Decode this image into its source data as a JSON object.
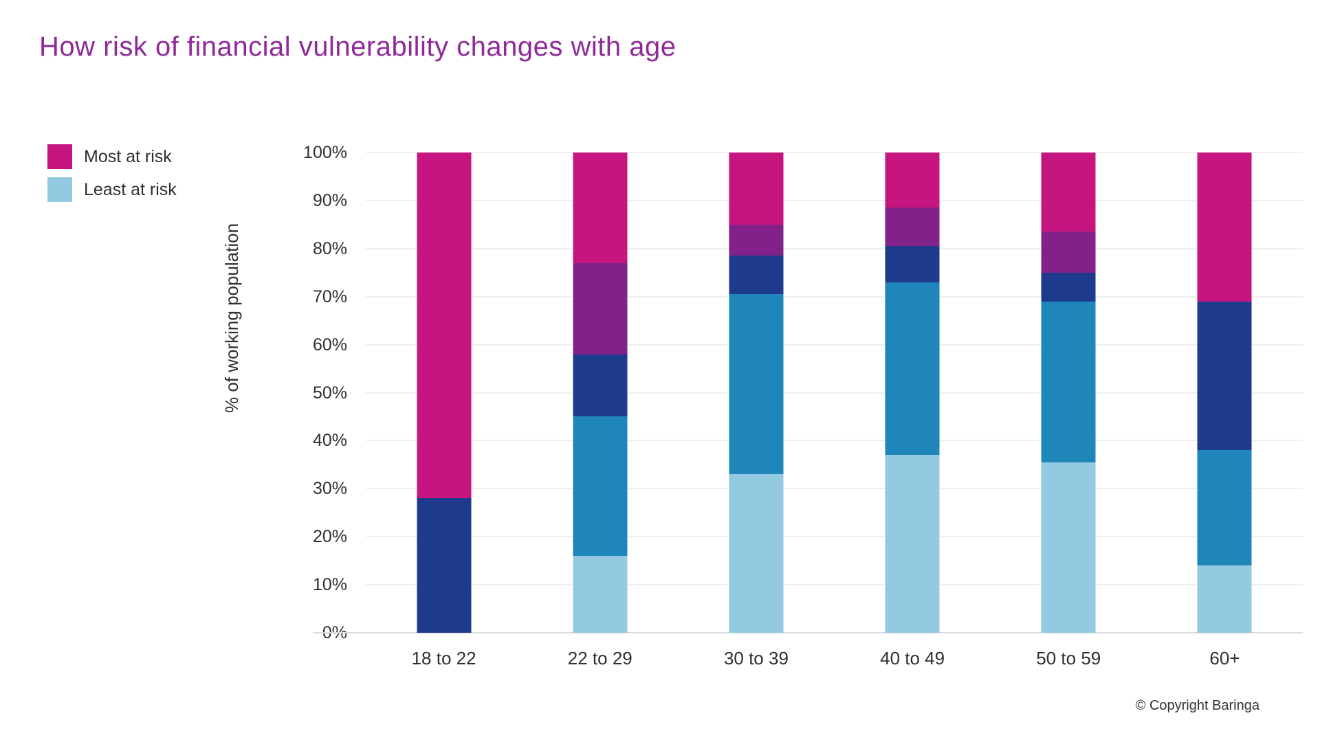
{
  "page": {
    "title": "How risk of financial vulnerability changes with age",
    "copyright": "© Copyright Baringa"
  },
  "colors": {
    "title": "#8E2A99",
    "text": "#2F2F2F",
    "gridline": "#EFEFEF",
    "most_at_risk": "#C7157F",
    "purple": "#82218A",
    "navy": "#1E3A8C",
    "mid_blue": "#1E86B8",
    "least_at_risk": "#94C9E2"
  },
  "legend": [
    {
      "label": "Most at risk",
      "color": "#C7157F"
    },
    {
      "label": "Least at risk",
      "color": "#94C9E2"
    }
  ],
  "chart_data": {
    "type": "bar",
    "stacked": true,
    "title": "How risk of financial vulnerability changes with age",
    "xlabel": "",
    "ylabel": "% of working population",
    "ylim": [
      0,
      100
    ],
    "yticks": [
      "0%",
      "10%",
      "20%",
      "30%",
      "40%",
      "50%",
      "60%",
      "70%",
      "80%",
      "90%",
      "100%"
    ],
    "grid": "horizontal",
    "legend_position": "top-left",
    "categories": [
      "18 to 22",
      "22 to 29",
      "30 to 39",
      "40 to 49",
      "50 to 59",
      "60+"
    ],
    "series": [
      {
        "name": "Least at risk",
        "in_legend": true,
        "color": "#94C9E2",
        "values": [
          0,
          16,
          33,
          37,
          35.5,
          14
        ]
      },
      {
        "name": "",
        "in_legend": false,
        "color": "#1E86B8",
        "values": [
          0,
          29,
          37.5,
          36,
          33.5,
          24
        ]
      },
      {
        "name": "",
        "in_legend": false,
        "color": "#1E3A8C",
        "values": [
          28,
          13,
          8,
          7.5,
          6,
          31
        ]
      },
      {
        "name": "",
        "in_legend": false,
        "color": "#82218A",
        "values": [
          0,
          19,
          6.5,
          8,
          8.5,
          0
        ]
      },
      {
        "name": "Most at risk",
        "in_legend": true,
        "color": "#C7157F",
        "values": [
          72,
          23,
          15,
          11.5,
          16.5,
          31
        ]
      }
    ]
  }
}
